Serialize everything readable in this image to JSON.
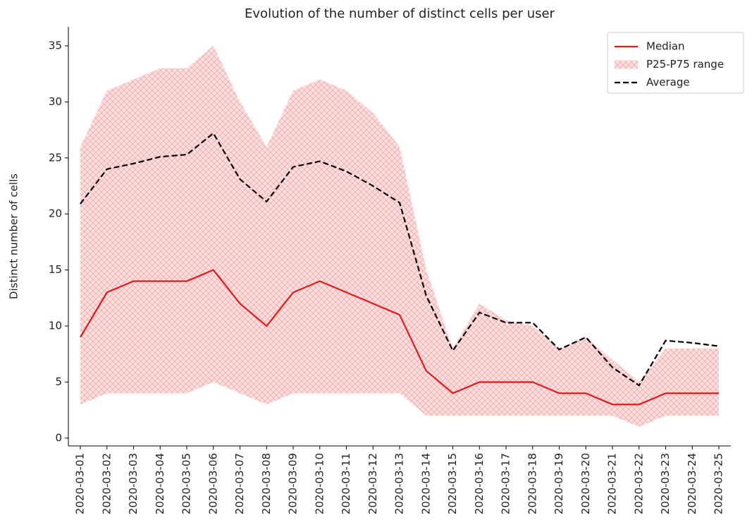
{
  "chart_data": {
    "type": "line",
    "title": "Evolution of the number of distinct cells per user",
    "y_label": "Distinct number of cells",
    "categories": [
      "2020-03-01",
      "2020-03-02",
      "2020-03-03",
      "2020-03-04",
      "2020-03-05",
      "2020-03-06",
      "2020-03-07",
      "2020-03-08",
      "2020-03-09",
      "2020-03-10",
      "2020-03-11",
      "2020-03-12",
      "2020-03-13",
      "2020-03-14",
      "2020-03-15",
      "2020-03-16",
      "2020-03-17",
      "2020-03-18",
      "2020-03-19",
      "2020-03-20",
      "2020-03-21",
      "2020-03-22",
      "2020-03-23",
      "2020-03-24",
      "2020-03-25"
    ],
    "series": [
      {
        "name": "Median",
        "color": "#e3191c",
        "linestyle": "solid",
        "values": [
          9,
          13,
          14,
          14,
          14,
          15,
          12,
          10,
          13,
          14,
          13,
          12,
          11,
          6,
          4,
          5,
          5,
          5,
          4,
          4,
          3,
          3,
          4,
          4,
          4
        ]
      },
      {
        "name": "P25-P75 range",
        "color": "#f7a8a8",
        "linestyle": "hatched",
        "lower": [
          3,
          4,
          4,
          4,
          4,
          5,
          4,
          3,
          4,
          4,
          4,
          4,
          4,
          2,
          2,
          2,
          2,
          2,
          2,
          2,
          2,
          1,
          2,
          2,
          2
        ],
        "upper": [
          26,
          31,
          32,
          33,
          33,
          35,
          30,
          26,
          31,
          32,
          31,
          29,
          26,
          15,
          8,
          12,
          10.5,
          10,
          8,
          9,
          7,
          5,
          8,
          8,
          8
        ]
      },
      {
        "name": "Average",
        "color": "#000000",
        "linestyle": "dashed",
        "values": [
          20.9,
          24,
          24.5,
          25.1,
          25.3,
          27.2,
          23.1,
          21.1,
          24.2,
          24.7,
          23.8,
          22.5,
          21,
          12.7,
          7.8,
          11.2,
          10.3,
          10.3,
          7.9,
          9,
          6.3,
          4.7,
          8.7,
          8.5,
          8.2
        ]
      }
    ],
    "ylim": [
      -0.7,
      36.7
    ],
    "yticks": [
      0,
      5,
      10,
      15,
      20,
      25,
      30,
      35
    ],
    "grid": false,
    "legend": "upper right"
  }
}
